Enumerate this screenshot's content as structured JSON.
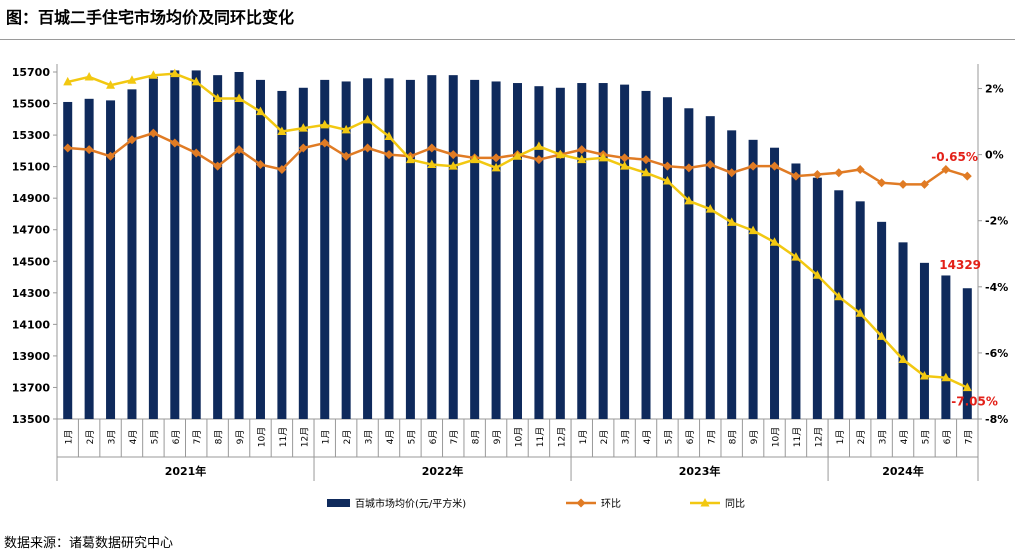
{
  "page": {
    "title": "图：百城二手住宅市场均价及同环比变化",
    "source": "数据来源：诸葛数据研究中心"
  },
  "colors": {
    "bar": "#0f2a5c",
    "mom": "#e07b24",
    "yoy": "#f2c811",
    "annotation": "#e32119",
    "axis": "#999999"
  },
  "chart_data": {
    "type": "bar+line",
    "title": "百城二手住宅市场均价及同环比变化",
    "categories": [
      "1月",
      "2月",
      "3月",
      "4月",
      "5月",
      "6月",
      "7月",
      "8月",
      "9月",
      "10月",
      "11月",
      "12月",
      "1月",
      "2月",
      "3月",
      "4月",
      "5月",
      "6月",
      "7月",
      "8月",
      "9月",
      "10月",
      "11月",
      "12月",
      "1月",
      "2月",
      "3月",
      "4月",
      "5月",
      "6月",
      "7月",
      "8月",
      "9月",
      "10月",
      "11月",
      "12月",
      "1月",
      "2月",
      "3月",
      "4月",
      "5月",
      "6月",
      "7月"
    ],
    "years": [
      {
        "label": "2021年",
        "count": 12
      },
      {
        "label": "2022年",
        "count": 12
      },
      {
        "label": "2023年",
        "count": 12
      },
      {
        "label": "2024年",
        "count": 7
      }
    ],
    "y_left": {
      "min": 13500,
      "max": 15700,
      "ticks": [
        13500,
        13700,
        13900,
        14100,
        14300,
        14500,
        14700,
        14900,
        15100,
        15300,
        15500,
        15700
      ]
    },
    "y_right": {
      "min": -8,
      "max": 2.5,
      "ticks": [
        2,
        0,
        -2,
        -4,
        -6,
        -8
      ],
      "tick_labels": [
        "2%",
        "0%",
        "-2%",
        "-4%",
        "-6%",
        "-8%"
      ]
    },
    "series": [
      {
        "name": "百城市场均价(元/平方米)",
        "type": "bar",
        "axis": "left",
        "values": [
          15510,
          15530,
          15520,
          15590,
          15670,
          15710,
          15710,
          15680,
          15700,
          15650,
          15580,
          15600,
          15650,
          15640,
          15660,
          15660,
          15650,
          15680,
          15680,
          15650,
          15640,
          15630,
          15610,
          15600,
          15630,
          15630,
          15620,
          15580,
          15540,
          15470,
          15420,
          15330,
          15270,
          15220,
          15120,
          15030,
          14950,
          14880,
          14750,
          14620,
          14490,
          14410,
          14329
        ]
      },
      {
        "name": "环比",
        "type": "line",
        "axis": "right",
        "values": [
          0.2,
          0.15,
          -0.05,
          0.45,
          0.65,
          0.35,
          0.05,
          -0.35,
          0.15,
          -0.3,
          -0.45,
          0.2,
          0.35,
          -0.05,
          0.2,
          0.0,
          -0.05,
          0.2,
          0.0,
          -0.1,
          -0.1,
          0.0,
          -0.15,
          0.0,
          0.15,
          0.0,
          -0.1,
          -0.15,
          -0.35,
          -0.4,
          -0.3,
          -0.55,
          -0.35,
          -0.35,
          -0.65,
          -0.6,
          -0.55,
          -0.45,
          -0.85,
          -0.9,
          -0.9,
          -0.45,
          -0.65
        ]
      },
      {
        "name": "同比",
        "type": "line",
        "axis": "right",
        "values": [
          2.2,
          2.35,
          2.1,
          2.25,
          2.4,
          2.45,
          2.2,
          1.7,
          1.7,
          1.3,
          0.7,
          0.8,
          0.9,
          0.75,
          1.05,
          0.55,
          -0.15,
          -0.3,
          -0.35,
          -0.15,
          -0.4,
          -0.05,
          0.25,
          0.0,
          -0.15,
          -0.1,
          -0.35,
          -0.55,
          -0.8,
          -1.4,
          -1.65,
          -2.05,
          -2.3,
          -2.65,
          -3.1,
          -3.65,
          -4.3,
          -4.8,
          -5.5,
          -6.2,
          -6.7,
          -6.75,
          -7.05
        ]
      }
    ],
    "annotations": [
      {
        "text": "-0.65%",
        "series": "环比",
        "index": 42
      },
      {
        "text": "14329",
        "series": "百城市场均价(元/平方米)",
        "index": 42
      },
      {
        "text": "-7.05%",
        "series": "同比",
        "index": 42
      }
    ],
    "legend": {
      "position": "bottom",
      "items": [
        "百城市场均价(元/平方米)",
        "环比",
        "同比"
      ]
    }
  }
}
